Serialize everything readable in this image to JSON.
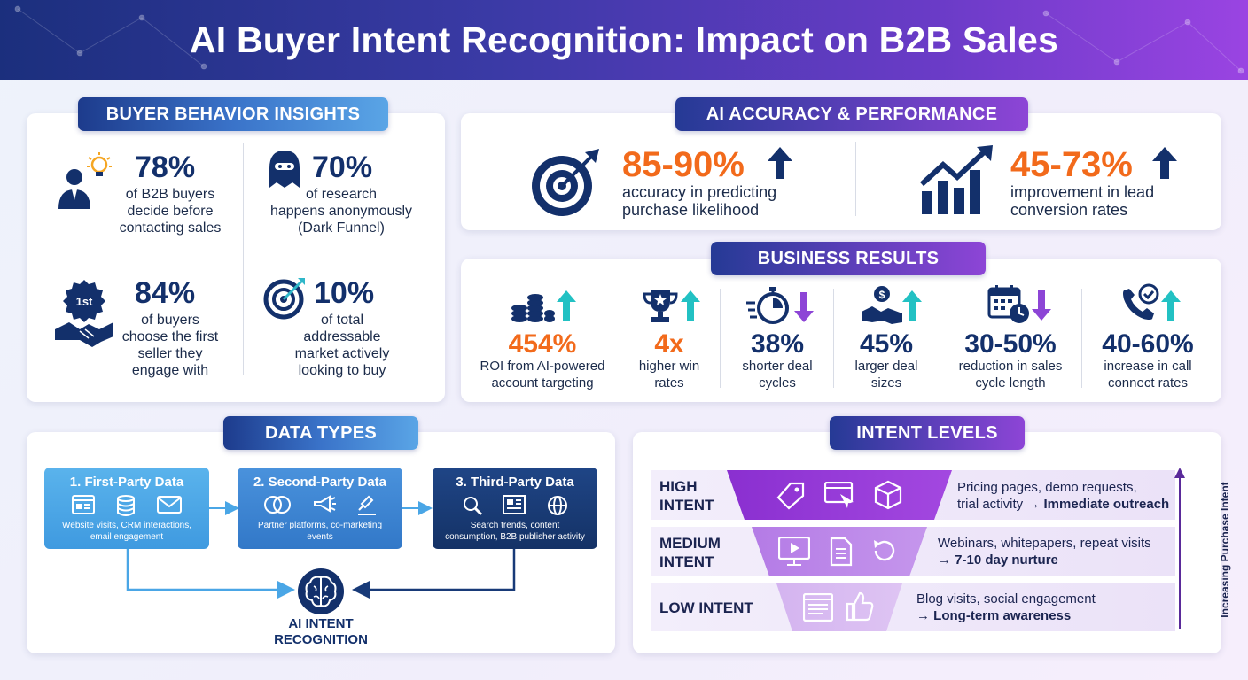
{
  "title": "AI Buyer Intent Recognition: Impact on B2B Sales",
  "buyer_behavior": {
    "heading": "BUYER BEHAVIOR INSIGHTS",
    "stats": [
      {
        "value": "78%",
        "lines": [
          "of B2B buyers",
          "decide before",
          "contacting sales"
        ],
        "icon": "person-lightbulb-icon"
      },
      {
        "value": "70%",
        "lines": [
          "of research",
          "happens anonymously",
          "(Dark Funnel)"
        ],
        "icon": "anonymous-hood-icon"
      },
      {
        "value": "84%",
        "lines": [
          "of buyers",
          "choose the first",
          "seller they",
          "engage with"
        ],
        "icon": "first-badge-handshake-icon",
        "badge": "1st"
      },
      {
        "value": "10%",
        "lines": [
          "of total",
          "addressable",
          "market actively",
          "looking to buy"
        ],
        "icon": "target-icon"
      }
    ]
  },
  "ai_accuracy": {
    "heading": "AI ACCURACY & PERFORMANCE",
    "stats": [
      {
        "value": "85-90%",
        "lines": [
          "accuracy in predicting",
          "purchase likelihood"
        ],
        "icon": "target-arrow-icon",
        "trend": "up"
      },
      {
        "value": "45-73%",
        "lines": [
          "improvement in lead",
          "conversion rates"
        ],
        "icon": "growth-chart-icon",
        "trend": "up"
      }
    ]
  },
  "business_results": {
    "heading": "BUSINESS RESULTS",
    "items": [
      {
        "value": "454%",
        "lines": [
          "ROI from AI-powered",
          "account targeting"
        ],
        "icon": "coins-icon",
        "trend": "up",
        "highlight": true
      },
      {
        "value": "4x",
        "lines": [
          "higher win",
          "rates"
        ],
        "icon": "trophy-icon",
        "trend": "up",
        "highlight": true
      },
      {
        "value": "38%",
        "lines": [
          "shorter deal",
          "cycles"
        ],
        "icon": "stopwatch-icon",
        "trend": "down",
        "highlight": false
      },
      {
        "value": "45%",
        "lines": [
          "larger deal",
          "sizes"
        ],
        "icon": "money-handshake-icon",
        "trend": "up",
        "highlight": false
      },
      {
        "value": "30-50%",
        "lines": [
          "reduction in sales",
          "cycle length"
        ],
        "icon": "calendar-clock-icon",
        "trend": "down",
        "highlight": false
      },
      {
        "value": "40-60%",
        "lines": [
          "increase in call",
          "connect rates"
        ],
        "icon": "phone-check-icon",
        "trend": "up",
        "highlight": false
      }
    ]
  },
  "data_types": {
    "heading": "DATA TYPES",
    "boxes": [
      {
        "title": "1. First-Party Data",
        "desc": [
          "Website visits, CRM interactions,",
          "email engagement"
        ],
        "icons": [
          "browser-icon",
          "database-icon",
          "email-icon"
        ],
        "color": "#4aa6e6"
      },
      {
        "title": "2. Second-Party Data",
        "desc": [
          "Partner platforms, co-marketing",
          "events"
        ],
        "icons": [
          "overlap-circles-icon",
          "megaphone-icon",
          "stamp-icon"
        ],
        "color": "#3d82d2"
      },
      {
        "title": "3. Third-Party Data",
        "desc": [
          "Search trends, content",
          "consumption, B2B publisher activity"
        ],
        "icons": [
          "magnifier-icon",
          "newspaper-icon",
          "globe-icon"
        ],
        "color": "#183a78"
      }
    ],
    "hub": {
      "lines": [
        "AI INTENT",
        "RECOGNITION"
      ],
      "icon": "brain-icon"
    }
  },
  "intent_levels": {
    "heading": "INTENT LEVELS",
    "axis_label": "Increasing Purchase Intent",
    "levels": [
      {
        "label": [
          "HIGH",
          "INTENT"
        ],
        "desc_line1": "Pricing pages, demo requests,",
        "desc_line2_plain": "trial activity → ",
        "desc_line2_bold": "Immediate outreach",
        "icons": [
          "price-tag-icon",
          "browser-click-icon",
          "box-icon"
        ]
      },
      {
        "label": [
          "MEDIUM",
          "INTENT"
        ],
        "desc_line1": "Webinars, whitepapers, repeat visits",
        "desc_line2_plain": "→ ",
        "desc_line2_bold": "7-10 day nurture",
        "icons": [
          "video-icon",
          "document-icon",
          "refresh-icon"
        ]
      },
      {
        "label": [
          "LOW INTENT"
        ],
        "desc_line1": "Blog visits, social engagement",
        "desc_line2_plain": "→ ",
        "desc_line2_bold": "Long-term awareness",
        "icons": [
          "blog-page-icon",
          "thumbs-up-icon"
        ]
      }
    ]
  },
  "colors": {
    "navy": "#13306b",
    "orange": "#f26a1b",
    "teal_up": "#22c1c3",
    "purple_down": "#8d45d6",
    "navy_up": "#1d3b8c"
  }
}
